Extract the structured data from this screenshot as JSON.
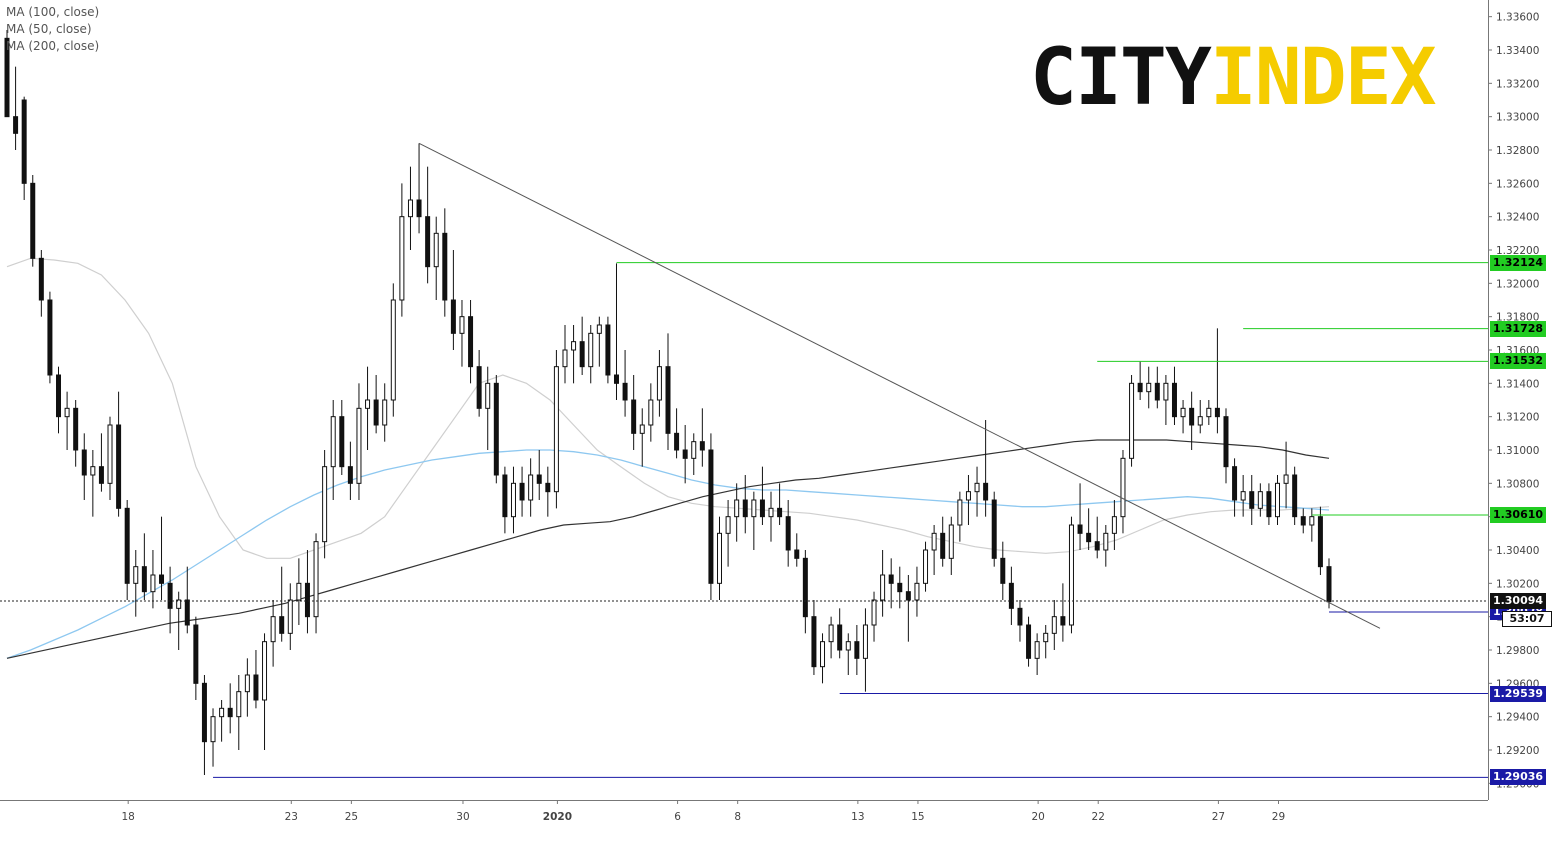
{
  "legend": {
    "ma100": "MA (100, close)",
    "ma50": "MA (50, close)",
    "ma200": "MA (200, close)"
  },
  "logo": {
    "part1": "CITY",
    "part2": "INDEX"
  },
  "chart_data": {
    "type": "candlestick",
    "symbol": "GBP/USD",
    "y_range": [
      1.289,
      1.337
    ],
    "y_ticks": [
      1.29,
      1.292,
      1.294,
      1.296,
      1.298,
      1.3,
      1.302,
      1.304,
      1.306,
      1.308,
      1.31,
      1.312,
      1.314,
      1.316,
      1.318,
      1.32,
      1.322,
      1.324,
      1.326,
      1.328,
      1.33,
      1.332,
      1.334,
      1.336
    ],
    "x_labels": [
      "18",
      "23",
      "25",
      "30",
      "2020",
      "6",
      "8",
      "13",
      "15",
      "20",
      "22",
      "27",
      "29"
    ],
    "horizontal_levels": [
      {
        "value": 1.32124,
        "label": "1.32124",
        "color": "#22cc22",
        "type": "resistance"
      },
      {
        "value": 1.31728,
        "label": "1.31728",
        "color": "#22cc22",
        "type": "resistance"
      },
      {
        "value": 1.31532,
        "label": "1.31532",
        "color": "#22cc22",
        "type": "resistance"
      },
      {
        "value": 1.3061,
        "label": "1.30610",
        "color": "#22cc22",
        "type": "resistance"
      },
      {
        "value": 1.30028,
        "label": "1.30028",
        "color": "#1a1aa6",
        "type": "support"
      },
      {
        "value": 1.29539,
        "label": "1.29539",
        "color": "#1a1aa6",
        "type": "support"
      },
      {
        "value": 1.29036,
        "label": "1.29036",
        "color": "#1a1aa6",
        "type": "support"
      }
    ],
    "current_price": {
      "value": 1.30094,
      "label": "1.30094"
    },
    "countdown": "53:07",
    "trendline": {
      "from": 1.3284,
      "to": 1.2993
    },
    "candles": [
      [
        1.3347,
        1.3352,
        1.33,
        1.33
      ],
      [
        1.33,
        1.333,
        1.328,
        1.329
      ],
      [
        1.331,
        1.3312,
        1.325,
        1.326
      ],
      [
        1.326,
        1.3265,
        1.321,
        1.3215
      ],
      [
        1.3215,
        1.322,
        1.318,
        1.319
      ],
      [
        1.319,
        1.3195,
        1.314,
        1.3145
      ],
      [
        1.3145,
        1.315,
        1.311,
        1.312
      ],
      [
        1.312,
        1.3135,
        1.31,
        1.3125
      ],
      [
        1.3125,
        1.313,
        1.309,
        1.31
      ],
      [
        1.31,
        1.311,
        1.307,
        1.3085
      ],
      [
        1.3085,
        1.31,
        1.306,
        1.309
      ],
      [
        1.309,
        1.311,
        1.3075,
        1.308
      ],
      [
        1.308,
        1.312,
        1.307,
        1.3115
      ],
      [
        1.3115,
        1.3135,
        1.306,
        1.3065
      ],
      [
        1.3065,
        1.307,
        1.301,
        1.302
      ],
      [
        1.302,
        1.304,
        1.3,
        1.303
      ],
      [
        1.303,
        1.305,
        1.301,
        1.3015
      ],
      [
        1.3015,
        1.304,
        1.3005,
        1.3025
      ],
      [
        1.3025,
        1.306,
        1.301,
        1.302
      ],
      [
        1.302,
        1.303,
        1.299,
        1.3005
      ],
      [
        1.3005,
        1.3015,
        1.298,
        1.301
      ],
      [
        1.301,
        1.303,
        1.299,
        1.2995
      ],
      [
        1.2995,
        1.3,
        1.295,
        1.296
      ],
      [
        1.296,
        1.2965,
        1.2905,
        1.2925
      ],
      [
        1.2925,
        1.2945,
        1.291,
        1.294
      ],
      [
        1.294,
        1.295,
        1.2925,
        1.2945
      ],
      [
        1.2945,
        1.296,
        1.293,
        1.294
      ],
      [
        1.294,
        1.2965,
        1.292,
        1.2955
      ],
      [
        1.2955,
        1.2975,
        1.294,
        1.2965
      ],
      [
        1.2965,
        1.298,
        1.2945,
        1.295
      ],
      [
        1.295,
        1.299,
        1.292,
        1.2985
      ],
      [
        1.2985,
        1.301,
        1.297,
        1.3
      ],
      [
        1.3,
        1.303,
        1.2985,
        1.299
      ],
      [
        1.299,
        1.302,
        1.298,
        1.301
      ],
      [
        1.301,
        1.3035,
        1.2995,
        1.302
      ],
      [
        1.302,
        1.304,
        1.299,
        1.3
      ],
      [
        1.3,
        1.305,
        1.299,
        1.3045
      ],
      [
        1.3045,
        1.31,
        1.3035,
        1.309
      ],
      [
        1.309,
        1.313,
        1.307,
        1.312
      ],
      [
        1.312,
        1.313,
        1.3085,
        1.309
      ],
      [
        1.309,
        1.3105,
        1.307,
        1.308
      ],
      [
        1.308,
        1.314,
        1.307,
        1.3125
      ],
      [
        1.3125,
        1.315,
        1.31,
        1.313
      ],
      [
        1.313,
        1.3145,
        1.311,
        1.3115
      ],
      [
        1.3115,
        1.314,
        1.3105,
        1.313
      ],
      [
        1.313,
        1.32,
        1.312,
        1.319
      ],
      [
        1.319,
        1.326,
        1.318,
        1.324
      ],
      [
        1.324,
        1.327,
        1.322,
        1.325
      ],
      [
        1.325,
        1.3284,
        1.323,
        1.324
      ],
      [
        1.324,
        1.327,
        1.32,
        1.321
      ],
      [
        1.321,
        1.324,
        1.319,
        1.323
      ],
      [
        1.323,
        1.3245,
        1.318,
        1.319
      ],
      [
        1.319,
        1.322,
        1.316,
        1.317
      ],
      [
        1.317,
        1.319,
        1.315,
        1.318
      ],
      [
        1.318,
        1.319,
        1.314,
        1.315
      ],
      [
        1.315,
        1.316,
        1.312,
        1.3125
      ],
      [
        1.3125,
        1.315,
        1.31,
        1.314
      ],
      [
        1.314,
        1.3145,
        1.308,
        1.3085
      ],
      [
        1.3085,
        1.309,
        1.305,
        1.306
      ],
      [
        1.306,
        1.309,
        1.305,
        1.308
      ],
      [
        1.308,
        1.309,
        1.306,
        1.307
      ],
      [
        1.307,
        1.3095,
        1.306,
        1.3085
      ],
      [
        1.3085,
        1.31,
        1.307,
        1.308
      ],
      [
        1.308,
        1.309,
        1.306,
        1.3075
      ],
      [
        1.3075,
        1.316,
        1.3065,
        1.315
      ],
      [
        1.315,
        1.3175,
        1.314,
        1.316
      ],
      [
        1.316,
        1.3175,
        1.314,
        1.3165
      ],
      [
        1.3165,
        1.318,
        1.3145,
        1.315
      ],
      [
        1.315,
        1.3175,
        1.314,
        1.317
      ],
      [
        1.317,
        1.318,
        1.315,
        1.3175
      ],
      [
        1.3175,
        1.318,
        1.314,
        1.3145
      ],
      [
        1.3145,
        1.3212,
        1.313,
        1.314
      ],
      [
        1.314,
        1.316,
        1.312,
        1.313
      ],
      [
        1.313,
        1.3145,
        1.31,
        1.311
      ],
      [
        1.311,
        1.3125,
        1.309,
        1.3115
      ],
      [
        1.3115,
        1.314,
        1.3105,
        1.313
      ],
      [
        1.313,
        1.316,
        1.312,
        1.315
      ],
      [
        1.315,
        1.317,
        1.31,
        1.311
      ],
      [
        1.311,
        1.3125,
        1.3095,
        1.31
      ],
      [
        1.31,
        1.3115,
        1.308,
        1.3095
      ],
      [
        1.3095,
        1.311,
        1.3085,
        1.3105
      ],
      [
        1.3105,
        1.3125,
        1.309,
        1.31
      ],
      [
        1.31,
        1.311,
        1.301,
        1.302
      ],
      [
        1.302,
        1.306,
        1.301,
        1.305
      ],
      [
        1.305,
        1.307,
        1.303,
        1.306
      ],
      [
        1.306,
        1.308,
        1.3045,
        1.307
      ],
      [
        1.307,
        1.3085,
        1.305,
        1.306
      ],
      [
        1.306,
        1.3075,
        1.304,
        1.307
      ],
      [
        1.307,
        1.309,
        1.3055,
        1.306
      ],
      [
        1.306,
        1.3075,
        1.3045,
        1.3065
      ],
      [
        1.3065,
        1.308,
        1.3055,
        1.306
      ],
      [
        1.306,
        1.307,
        1.303,
        1.304
      ],
      [
        1.304,
        1.305,
        1.303,
        1.3035
      ],
      [
        1.3035,
        1.304,
        1.299,
        1.3
      ],
      [
        1.3,
        1.301,
        1.2965,
        1.297
      ],
      [
        1.297,
        1.299,
        1.296,
        1.2985
      ],
      [
        1.2985,
        1.3,
        1.2975,
        1.2995
      ],
      [
        1.2995,
        1.3005,
        1.2975,
        1.298
      ],
      [
        1.298,
        1.299,
        1.2965,
        1.2985
      ],
      [
        1.2985,
        1.2995,
        1.2965,
        1.2975
      ],
      [
        1.2975,
        1.3005,
        1.2955,
        1.2995
      ],
      [
        1.2995,
        1.3015,
        1.2985,
        1.301
      ],
      [
        1.301,
        1.304,
        1.3,
        1.3025
      ],
      [
        1.3025,
        1.3035,
        1.3005,
        1.302
      ],
      [
        1.302,
        1.303,
        1.3005,
        1.3015
      ],
      [
        1.3015,
        1.3025,
        1.2985,
        1.301
      ],
      [
        1.301,
        1.303,
        1.3,
        1.302
      ],
      [
        1.302,
        1.3045,
        1.3015,
        1.304
      ],
      [
        1.304,
        1.3055,
        1.3025,
        1.305
      ],
      [
        1.305,
        1.306,
        1.303,
        1.3035
      ],
      [
        1.3035,
        1.306,
        1.3025,
        1.3055
      ],
      [
        1.3055,
        1.3075,
        1.3045,
        1.307
      ],
      [
        1.307,
        1.3085,
        1.3055,
        1.3075
      ],
      [
        1.3075,
        1.309,
        1.306,
        1.308
      ],
      [
        1.308,
        1.3118,
        1.306,
        1.307
      ],
      [
        1.307,
        1.3075,
        1.303,
        1.3035
      ],
      [
        1.3035,
        1.3045,
        1.301,
        1.302
      ],
      [
        1.302,
        1.303,
        1.2995,
        1.3005
      ],
      [
        1.3005,
        1.301,
        1.2985,
        1.2995
      ],
      [
        1.2995,
        1.3,
        1.297,
        1.2975
      ],
      [
        1.2975,
        1.299,
        1.2965,
        1.2985
      ],
      [
        1.2985,
        1.2995,
        1.2975,
        1.299
      ],
      [
        1.299,
        1.301,
        1.298,
        1.3
      ],
      [
        1.3,
        1.302,
        1.2985,
        1.2995
      ],
      [
        1.2995,
        1.306,
        1.299,
        1.3055
      ],
      [
        1.3055,
        1.308,
        1.304,
        1.305
      ],
      [
        1.305,
        1.3065,
        1.304,
        1.3045
      ],
      [
        1.3045,
        1.306,
        1.3035,
        1.304
      ],
      [
        1.304,
        1.3055,
        1.303,
        1.305
      ],
      [
        1.305,
        1.307,
        1.304,
        1.306
      ],
      [
        1.306,
        1.31,
        1.305,
        1.3095
      ],
      [
        1.3095,
        1.3145,
        1.309,
        1.314
      ],
      [
        1.314,
        1.3153,
        1.313,
        1.3135
      ],
      [
        1.3135,
        1.315,
        1.3125,
        1.314
      ],
      [
        1.314,
        1.315,
        1.3125,
        1.313
      ],
      [
        1.313,
        1.3145,
        1.3115,
        1.314
      ],
      [
        1.314,
        1.315,
        1.3115,
        1.312
      ],
      [
        1.312,
        1.313,
        1.311,
        1.3125
      ],
      [
        1.3125,
        1.3135,
        1.31,
        1.3115
      ],
      [
        1.3115,
        1.313,
        1.311,
        1.312
      ],
      [
        1.312,
        1.313,
        1.3115,
        1.3125
      ],
      [
        1.3125,
        1.3173,
        1.311,
        1.312
      ],
      [
        1.312,
        1.3125,
        1.308,
        1.309
      ],
      [
        1.309,
        1.3095,
        1.306,
        1.307
      ],
      [
        1.307,
        1.3085,
        1.306,
        1.3075
      ],
      [
        1.3075,
        1.3085,
        1.3055,
        1.3065
      ],
      [
        1.3065,
        1.308,
        1.306,
        1.3075
      ],
      [
        1.3075,
        1.308,
        1.3055,
        1.306
      ],
      [
        1.306,
        1.3085,
        1.3055,
        1.308
      ],
      [
        1.308,
        1.3105,
        1.3065,
        1.3085
      ],
      [
        1.3085,
        1.309,
        1.3055,
        1.306
      ],
      [
        1.306,
        1.3065,
        1.305,
        1.3055
      ],
      [
        1.3055,
        1.3065,
        1.3045,
        1.306
      ],
      [
        1.306,
        1.3066,
        1.3025,
        1.303
      ],
      [
        1.303,
        1.3035,
        1.3005,
        1.3009
      ]
    ],
    "ma_200": [
      1.2975,
      1.298,
      1.2986,
      1.2992,
      1.2999,
      1.3006,
      1.3014,
      1.3022,
      1.3031,
      1.304,
      1.3049,
      1.3058,
      1.3066,
      1.3073,
      1.3079,
      1.3084,
      1.3088,
      1.3091,
      1.3094,
      1.3096,
      1.3098,
      1.3099,
      1.31,
      1.31,
      1.3099,
      1.3097,
      1.3094,
      1.309,
      1.3086,
      1.3082,
      1.3079,
      1.3077,
      1.3076,
      1.3076,
      1.3075,
      1.3074,
      1.3073,
      1.3072,
      1.3071,
      1.307,
      1.3069,
      1.3068,
      1.3067,
      1.3066,
      1.3066,
      1.3067,
      1.3068,
      1.3069,
      1.307,
      1.3071,
      1.3072,
      1.3071,
      1.3069,
      1.3067,
      1.3066,
      1.3065,
      1.3064
    ],
    "ma_100": [
      1.2975,
      1.2978,
      1.2981,
      1.2984,
      1.2987,
      1.299,
      1.2993,
      1.2996,
      1.2998,
      1.3,
      1.3002,
      1.3005,
      1.3008,
      1.3012,
      1.3016,
      1.302,
      1.3024,
      1.3028,
      1.3032,
      1.3036,
      1.304,
      1.3044,
      1.3048,
      1.3052,
      1.3055,
      1.3056,
      1.3057,
      1.306,
      1.3064,
      1.3068,
      1.3072,
      1.3075,
      1.3078,
      1.308,
      1.3082,
      1.3083,
      1.3085,
      1.3087,
      1.3089,
      1.3091,
      1.3093,
      1.3095,
      1.3097,
      1.3099,
      1.3101,
      1.3103,
      1.3105,
      1.3106,
      1.3106,
      1.3106,
      1.3106,
      1.3105,
      1.3104,
      1.3103,
      1.3102,
      1.31,
      1.3097,
      1.3095
    ],
    "ma_50": [
      1.321,
      1.3215,
      1.3214,
      1.3212,
      1.3205,
      1.319,
      1.317,
      1.314,
      1.309,
      1.306,
      1.304,
      1.3035,
      1.3035,
      1.304,
      1.3045,
      1.305,
      1.306,
      1.308,
      1.31,
      1.312,
      1.314,
      1.3145,
      1.314,
      1.313,
      1.3115,
      1.31,
      1.309,
      1.308,
      1.3072,
      1.3068,
      1.3066,
      1.3065,
      1.3064,
      1.3063,
      1.3062,
      1.306,
      1.3058,
      1.3055,
      1.3052,
      1.3048,
      1.3045,
      1.3042,
      1.304,
      1.3039,
      1.3038,
      1.3039,
      1.3042,
      1.3046,
      1.3052,
      1.3058,
      1.3061,
      1.3063,
      1.3064,
      1.3064,
      1.3064,
      1.3065,
      1.3066
    ]
  }
}
